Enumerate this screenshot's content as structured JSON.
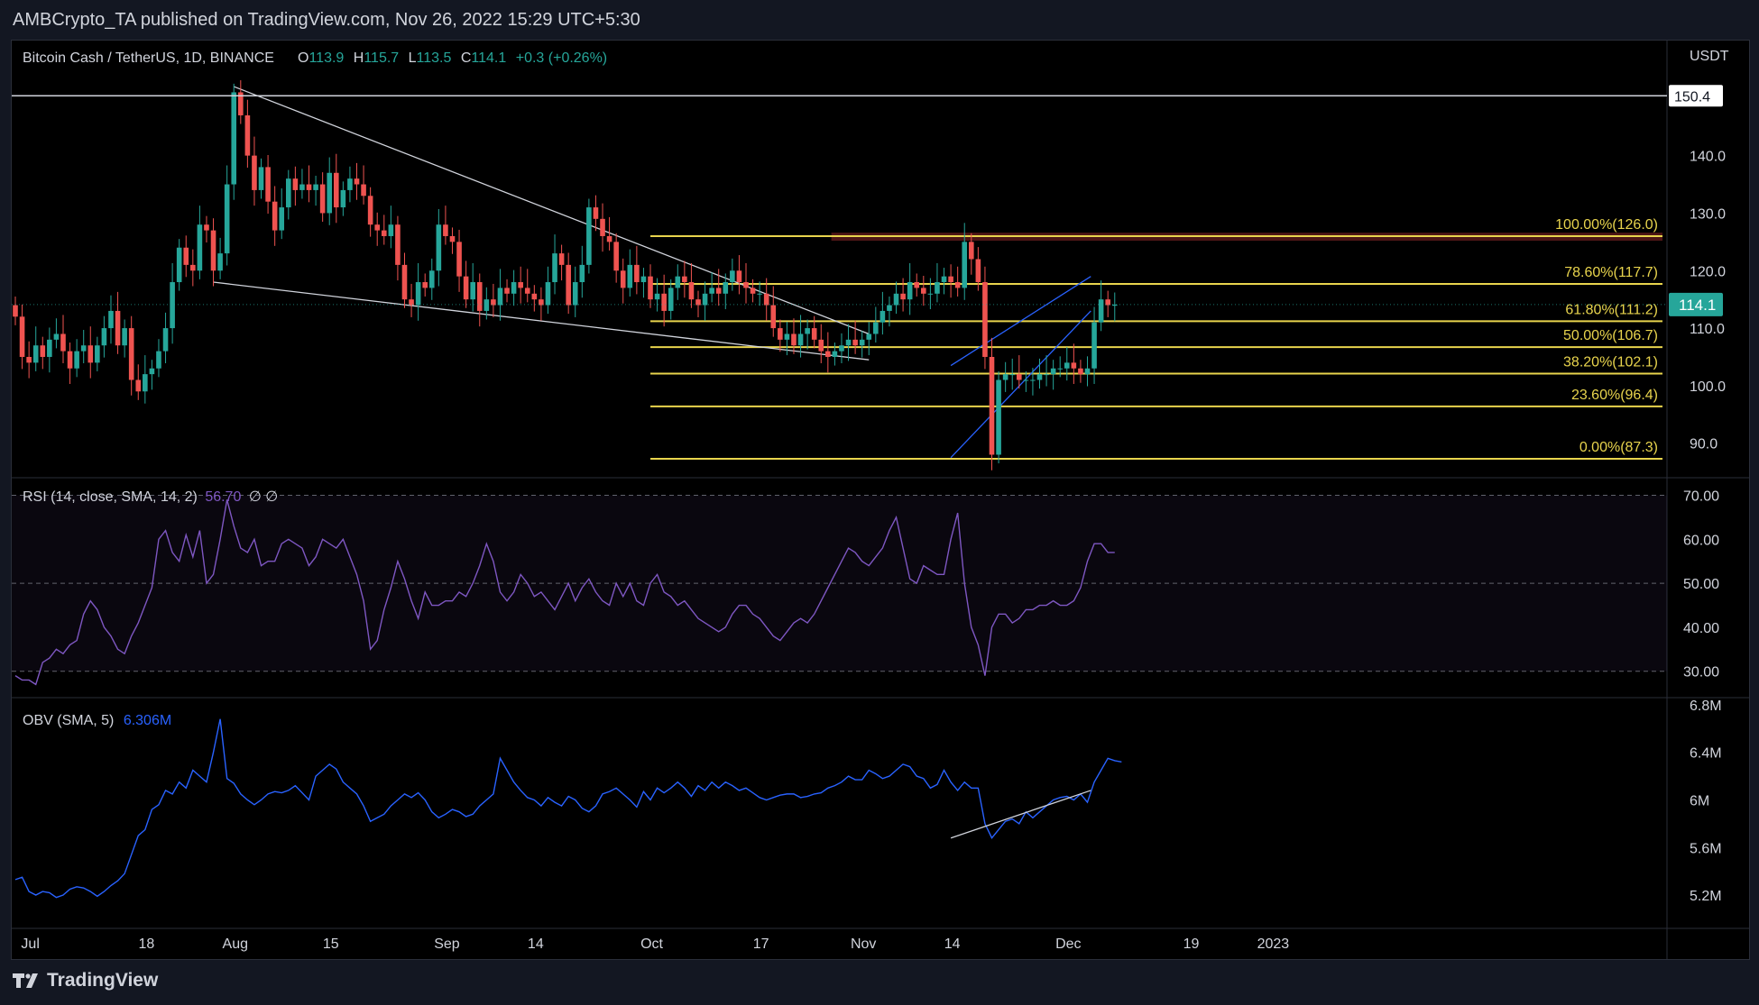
{
  "header": {
    "publish_text": "AMBCrypto_TA published on TradingView.com, Nov 26, 2022 15:29 UTC+5:30"
  },
  "footer": {
    "brand": "TradingView"
  },
  "colors": {
    "up": "#26a69a",
    "down": "#ef5350",
    "fib": "#e8d44d",
    "rsi": "#7e57c2",
    "obv": "#2962ff",
    "background": "#000000"
  },
  "chart_data": [
    {
      "type": "candlestick",
      "legend": {
        "symbol": "Bitcoin Cash / TetherUS, 1D, BINANCE",
        "o_label": "O",
        "o_val": "113.9",
        "h_label": "H",
        "h_val": "115.7",
        "l_label": "L",
        "l_val": "113.5",
        "c_label": "C",
        "c_val": "114.1",
        "change": "+0.3 (+0.26%)"
      },
      "currency": "USDT",
      "y_ticks": [
        "140.0",
        "130.0",
        "120.0",
        "110.0",
        "100.0",
        "90.0"
      ],
      "ylim": [
        84,
        160
      ],
      "last_price": "114.1",
      "horizontal_line": {
        "value": 150.4,
        "label": "150.4"
      },
      "fib_levels": [
        {
          "label": "100.00%(126.0)",
          "value": 126.0
        },
        {
          "label": "78.60%(117.7)",
          "value": 117.7
        },
        {
          "label": "61.80%(111.2)",
          "value": 111.2
        },
        {
          "label": "50.00%(106.7)",
          "value": 106.7
        },
        {
          "label": "38.20%(102.1)",
          "value": 102.1
        },
        {
          "label": "23.60%(96.4)",
          "value": 96.4
        },
        {
          "label": "0.00%(87.3)",
          "value": 87.3
        }
      ],
      "resistance_zone": [
        125.2,
        126.6
      ],
      "closes": [
        112,
        105,
        104,
        107,
        105,
        108,
        109,
        106,
        103,
        106,
        107,
        104,
        107,
        110,
        113,
        107,
        110,
        101,
        99,
        102,
        103,
        106,
        110,
        118,
        124,
        121,
        120,
        128,
        127,
        120,
        123,
        135,
        151,
        147,
        140,
        134,
        138,
        132,
        127,
        131,
        136,
        134,
        135,
        134,
        135,
        130,
        137,
        131,
        134,
        136,
        135,
        133,
        128,
        127,
        126,
        128,
        121,
        115,
        114,
        118,
        117,
        120,
        128,
        126,
        125,
        119,
        115,
        118,
        113,
        115,
        114,
        117,
        116,
        118,
        117,
        116,
        115,
        114,
        118,
        123,
        121,
        114,
        118,
        121,
        131,
        129,
        126,
        125,
        120,
        117,
        121,
        118,
        119,
        115,
        116,
        113,
        117,
        119,
        118,
        115,
        114,
        116,
        117,
        116,
        118,
        120,
        118,
        117,
        116,
        116,
        114,
        110,
        108,
        109,
        107,
        109,
        110,
        108,
        106,
        105,
        106,
        107,
        108,
        107,
        108,
        109,
        111,
        113,
        114,
        116,
        115,
        118,
        117,
        116,
        116,
        118,
        119,
        118,
        117,
        125,
        122,
        118,
        105,
        88,
        101,
        102,
        102,
        101,
        101,
        101,
        102,
        102,
        103,
        103,
        104,
        103,
        102,
        103,
        111,
        115,
        114,
        114.1
      ],
      "x_labels": [
        {
          "label": "Jul",
          "index": 2.2
        },
        {
          "label": "18",
          "index": 19.2
        },
        {
          "label": "Aug",
          "index": 32.2
        },
        {
          "label": "15",
          "index": 46.2
        },
        {
          "label": "Sep",
          "index": 63.2
        },
        {
          "label": "14",
          "index": 76.2
        },
        {
          "label": "Oct",
          "index": 93.2
        },
        {
          "label": "17",
          "index": 109.2
        },
        {
          "label": "Nov",
          "index": 124.2
        },
        {
          "label": "14",
          "index": 137.2
        },
        {
          "label": "Dec",
          "index": 154.2
        },
        {
          "label": "19",
          "index": 172.2
        },
        {
          "label": "2023",
          "index": 184.2
        }
      ]
    },
    {
      "type": "line",
      "name": "RSI (14, close, SMA, 14, 2)",
      "value_label": "56.70",
      "extra": "∅ ∅",
      "y_ticks": [
        "70.00",
        "60.00",
        "50.00",
        "40.00",
        "30.00"
      ],
      "ylim": [
        24,
        74
      ],
      "bands": [
        30,
        50,
        70
      ],
      "values": [
        29,
        28,
        28,
        27,
        32,
        33,
        35,
        34,
        36,
        37,
        43,
        46,
        44,
        40,
        38,
        35,
        34,
        38,
        41,
        45,
        49,
        60,
        62,
        57,
        55,
        61,
        56,
        62,
        50,
        52,
        60,
        69,
        63,
        58,
        57,
        60,
        54,
        55,
        55,
        59,
        60,
        59,
        58,
        54,
        56,
        60,
        59,
        58,
        60,
        56,
        52,
        46,
        35,
        37,
        44,
        49,
        55,
        51,
        46,
        42,
        48,
        45,
        45,
        46,
        46,
        48,
        47,
        50,
        54,
        59,
        55,
        48,
        46,
        48,
        52,
        50,
        47,
        48,
        46,
        44,
        47,
        50,
        46,
        49,
        51,
        48,
        46,
        45,
        50,
        47,
        50,
        46,
        45,
        50,
        52,
        48,
        47,
        45,
        46,
        44,
        42,
        41,
        40,
        39,
        40,
        43,
        45,
        45,
        43,
        42,
        40,
        38,
        37,
        39,
        41,
        42,
        41,
        43,
        46,
        49,
        52,
        55,
        58,
        57,
        55,
        54,
        56,
        58,
        62,
        65,
        58,
        51,
        50,
        54,
        53,
        52,
        52,
        60,
        66,
        50,
        40,
        36,
        29,
        40,
        43,
        43,
        41,
        42,
        44,
        44,
        45,
        45,
        46,
        45,
        45,
        46,
        49,
        55,
        59,
        59,
        57,
        57
      ]
    },
    {
      "type": "line",
      "name": "OBV (SMA, 5)",
      "value_label": "6.306M",
      "y_ticks": [
        "6.8M",
        "6.4M",
        "6M",
        "5.6M",
        "5.2M"
      ],
      "ylim": [
        4.92,
        6.86
      ],
      "values": [
        5.33,
        5.35,
        5.23,
        5.2,
        5.23,
        5.22,
        5.18,
        5.2,
        5.25,
        5.27,
        5.26,
        5.23,
        5.19,
        5.23,
        5.28,
        5.32,
        5.38,
        5.54,
        5.7,
        5.75,
        5.92,
        5.96,
        6.08,
        6.05,
        6.15,
        6.1,
        6.25,
        6.2,
        6.15,
        6.4,
        6.68,
        6.18,
        6.14,
        6.05,
        6.0,
        5.96,
        6.0,
        6.05,
        6.07,
        6.06,
        6.08,
        6.12,
        6.06,
        6.0,
        6.2,
        6.25,
        6.3,
        6.26,
        6.15,
        6.1,
        6.05,
        5.95,
        5.82,
        5.85,
        5.88,
        5.95,
        6.0,
        6.05,
        6.02,
        6.06,
        6.0,
        5.9,
        5.85,
        5.88,
        5.92,
        5.9,
        5.86,
        5.88,
        5.95,
        6.0,
        6.05,
        6.35,
        6.25,
        6.15,
        6.08,
        6.02,
        6.0,
        5.95,
        6.02,
        5.98,
        5.95,
        6.03,
        6.0,
        5.93,
        5.9,
        5.95,
        6.05,
        6.07,
        6.1,
        6.05,
        6.0,
        5.94,
        6.07,
        6.0,
        6.1,
        6.06,
        6.1,
        6.15,
        6.1,
        6.03,
        6.12,
        6.08,
        6.15,
        6.1,
        6.15,
        6.12,
        6.08,
        6.1,
        6.06,
        6.02,
        6.0,
        6.02,
        6.04,
        6.05,
        6.05,
        6.02,
        6.03,
        6.05,
        6.06,
        6.1,
        6.12,
        6.15,
        6.2,
        6.17,
        6.17,
        6.25,
        6.22,
        6.18,
        6.2,
        6.25,
        6.3,
        6.28,
        6.2,
        6.18,
        6.1,
        6.13,
        6.25,
        6.15,
        6.08,
        6.15,
        6.1,
        6.1,
        5.8,
        5.68,
        5.75,
        5.82,
        5.84,
        5.8,
        5.9,
        5.85,
        5.9,
        5.95,
        6.0,
        6.02,
        6.03,
        6.0,
        6.05,
        5.98,
        6.15,
        6.25,
        6.35,
        6.33,
        6.32
      ]
    }
  ]
}
